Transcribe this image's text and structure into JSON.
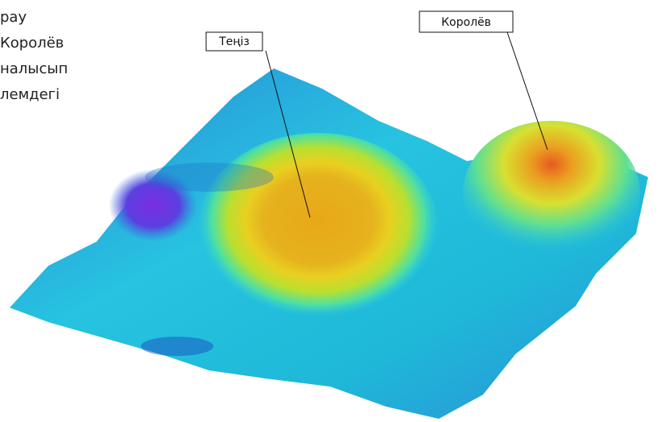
{
  "text_lines": [
    "рау",
    "Королёв",
    "налысып",
    "лемдегі"
  ],
  "labels": [
    {
      "label": "Теңіз"
    },
    {
      "label": "Королёв"
    }
  ]
}
